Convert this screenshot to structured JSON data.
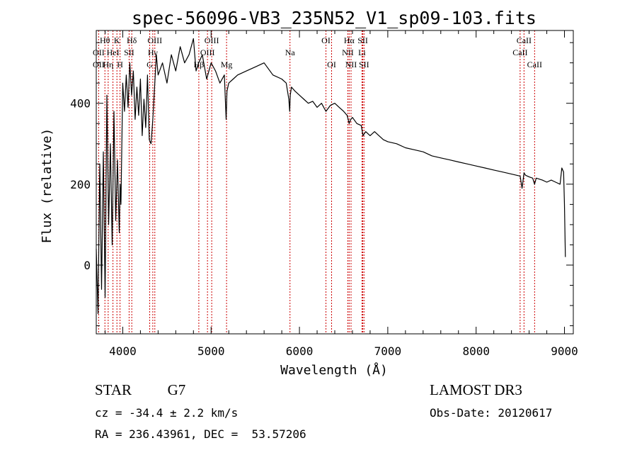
{
  "chart_data": {
    "type": "line",
    "title": "spec-56096-VB3_235N52_V1_sp09-103.fits",
    "xlabel": "Wavelength (Å)",
    "ylabel": "Flux (relative)",
    "xlim": [
      3700,
      9100
    ],
    "ylim": [
      -170,
      580
    ],
    "xticks": [
      4000,
      5000,
      6000,
      7000,
      8000,
      9000
    ],
    "yticks": [
      0,
      200,
      400
    ],
    "series": [
      {
        "name": "flux",
        "x": [
          3700,
          3720,
          3740,
          3760,
          3780,
          3800,
          3820,
          3840,
          3860,
          3880,
          3900,
          3920,
          3940,
          3960,
          3970,
          3980,
          4000,
          4020,
          4040,
          4060,
          4080,
          4100,
          4120,
          4140,
          4160,
          4180,
          4200,
          4220,
          4240,
          4260,
          4280,
          4300,
          4320,
          4340,
          4360,
          4380,
          4400,
          4450,
          4500,
          4550,
          4600,
          4650,
          4700,
          4750,
          4800,
          4830,
          4860,
          4900,
          4950,
          5000,
          5050,
          5100,
          5150,
          5170,
          5180,
          5200,
          5250,
          5300,
          5400,
          5500,
          5600,
          5700,
          5800,
          5850,
          5880,
          5890,
          5896,
          5910,
          5950,
          6000,
          6050,
          6100,
          6150,
          6200,
          6250,
          6300,
          6350,
          6400,
          6450,
          6500,
          6540,
          6563,
          6580,
          6600,
          6650,
          6700,
          6720,
          6750,
          6800,
          6850,
          6900,
          6950,
          7000,
          7100,
          7200,
          7300,
          7400,
          7500,
          7600,
          7700,
          7800,
          7900,
          8000,
          8100,
          8200,
          8300,
          8400,
          8498,
          8520,
          8542,
          8560,
          8600,
          8640,
          8662,
          8680,
          8750,
          8800,
          8850,
          8900,
          8950,
          8970,
          8990,
          9000,
          9010
        ],
        "y": [
          40,
          -120,
          250,
          -60,
          280,
          -80,
          420,
          100,
          300,
          50,
          380,
          110,
          260,
          80,
          200,
          150,
          450,
          380,
          470,
          390,
          500,
          420,
          480,
          360,
          440,
          370,
          460,
          320,
          410,
          340,
          470,
          310,
          300,
          360,
          440,
          520,
          470,
          500,
          450,
          520,
          480,
          540,
          500,
          520,
          560,
          480,
          500,
          520,
          460,
          500,
          480,
          450,
          470,
          360,
          430,
          450,
          460,
          470,
          480,
          490,
          500,
          470,
          460,
          450,
          410,
          380,
          420,
          440,
          430,
          420,
          410,
          400,
          405,
          390,
          400,
          380,
          395,
          400,
          390,
          380,
          370,
          350,
          360,
          365,
          350,
          345,
          320,
          330,
          320,
          330,
          320,
          310,
          305,
          300,
          290,
          285,
          280,
          270,
          265,
          260,
          255,
          250,
          245,
          240,
          235,
          230,
          225,
          220,
          190,
          228,
          222,
          218,
          215,
          200,
          215,
          210,
          205,
          210,
          205,
          200,
          240,
          230,
          150,
          20
        ]
      }
    ],
    "lines": [
      {
        "label": "Hθ",
        "wavelength": 3798,
        "row": 1
      },
      {
        "label": "OII",
        "wavelength": 3727,
        "row": 2
      },
      {
        "label": "OII",
        "wavelength": 3727,
        "row": 3
      },
      {
        "label": "Hη",
        "wavelength": 3835,
        "row": 3
      },
      {
        "label": "HeI",
        "wavelength": 3889,
        "row": 2
      },
      {
        "label": "K",
        "wavelength": 3934,
        "row": 1
      },
      {
        "label": "H",
        "wavelength": 3969,
        "row": 3
      },
      {
        "label": "SII",
        "wavelength": 4072,
        "row": 2
      },
      {
        "label": "Hδ",
        "wavelength": 4102,
        "row": 1
      },
      {
        "label": "OIII",
        "wavelength": 4363,
        "row": 1
      },
      {
        "label": "Hγ",
        "wavelength": 4340,
        "row": 2
      },
      {
        "label": "G",
        "wavelength": 4305,
        "row": 3
      },
      {
        "label": "Hβ",
        "wavelength": 4861,
        "row": 3
      },
      {
        "label": "OIII",
        "wavelength": 4959,
        "row": 2
      },
      {
        "label": "OIII",
        "wavelength": 5007,
        "row": 1
      },
      {
        "label": "Mg",
        "wavelength": 5175,
        "row": 3
      },
      {
        "label": "Na",
        "wavelength": 5893,
        "row": 2
      },
      {
        "label": "OI",
        "wavelength": 6300,
        "row": 1
      },
      {
        "label": "OI",
        "wavelength": 6364,
        "row": 3
      },
      {
        "label": "Hα",
        "wavelength": 6563,
        "row": 1
      },
      {
        "label": "NII",
        "wavelength": 6548,
        "row": 2
      },
      {
        "label": "NII",
        "wavelength": 6584,
        "row": 3
      },
      {
        "label": "SII",
        "wavelength": 6717,
        "row": 1
      },
      {
        "label": "Li",
        "wavelength": 6708,
        "row": 2
      },
      {
        "label": "SII",
        "wavelength": 6731,
        "row": 3
      },
      {
        "label": "CaII",
        "wavelength": 8542,
        "row": 1
      },
      {
        "label": "CaII",
        "wavelength": 8498,
        "row": 2
      },
      {
        "label": "CaII",
        "wavelength": 8662,
        "row": 3
      }
    ]
  },
  "info": {
    "class": "STAR",
    "subclass": "G7",
    "cz": "cz = -34.4 ± 2.2 km/s",
    "radec": "RA = 236.43961, DEC =  53.57206",
    "survey": "LAMOST DR3",
    "obs_date": "Obs-Date: 20120617"
  },
  "colors": {
    "spectrum": "#000000",
    "line_marker": "#cc0000",
    "background": "#ffffff"
  }
}
